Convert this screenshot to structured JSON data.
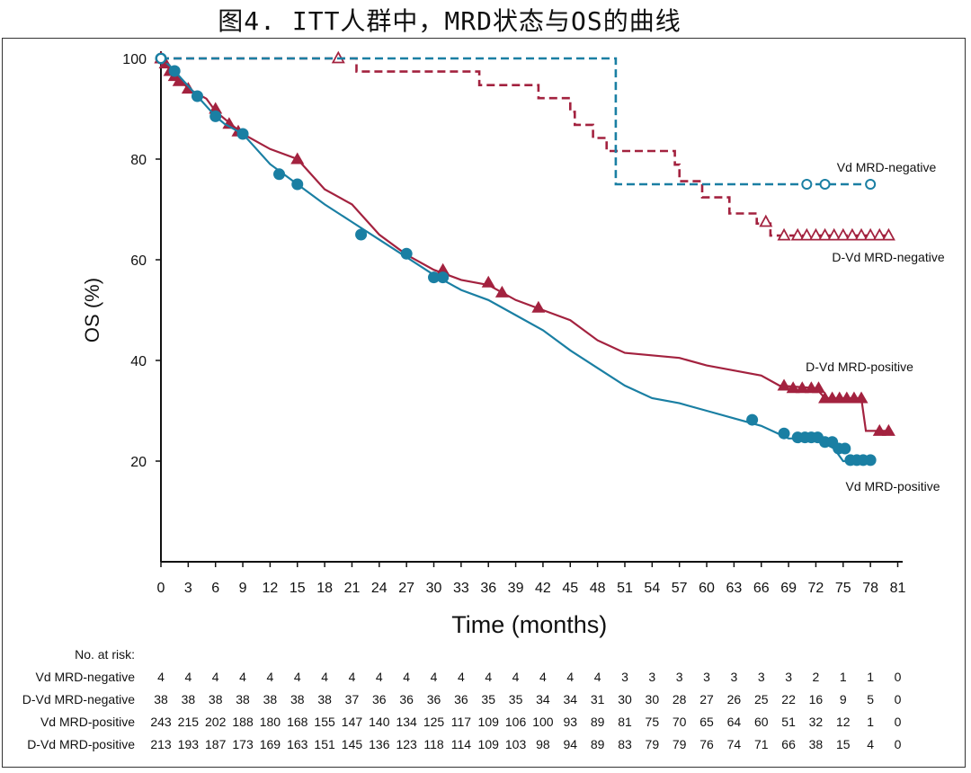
{
  "title": "图4. ITT人群中，MRD状态与OS的曲线",
  "chart_data": {
    "type": "line",
    "subtype": "kaplan-meier",
    "title": "图4. ITT人群中，MRD状态与OS的曲线",
    "xlabel": "Time (months)",
    "ylabel": "OS (%)",
    "xlim": [
      0,
      81
    ],
    "ylim": [
      0,
      100
    ],
    "xticks": [
      "0",
      "3",
      "6",
      "9",
      "12",
      "15",
      "18",
      "21",
      "24",
      "27",
      "30",
      "33",
      "36",
      "39",
      "42",
      "45",
      "48",
      "51",
      "54",
      "57",
      "60",
      "63",
      "66",
      "69",
      "72",
      "75",
      "78",
      "81"
    ],
    "yticks": [
      "20",
      "40",
      "60",
      "80",
      "100"
    ],
    "colors": {
      "teal": "#1a7fa3",
      "red": "#a3223f",
      "axis": "#111111"
    },
    "series": [
      {
        "name": "Vd MRD-negative",
        "label": "Vd MRD-negative",
        "color": "#1a7fa3",
        "dash": "dashed",
        "marker": "open-circle",
        "points": [
          [
            0,
            100
          ],
          [
            50,
            100
          ],
          [
            50,
            75
          ],
          [
            78,
            75
          ]
        ],
        "censored": [
          [
            0,
            100
          ],
          [
            71,
            75
          ],
          [
            73,
            75
          ],
          [
            78,
            75
          ]
        ]
      },
      {
        "name": "D-Vd MRD-negative",
        "label": "D-Vd MRD-negative",
        "color": "#a3223f",
        "dash": "dashed",
        "marker": "open-triangle",
        "points": [
          [
            0,
            100
          ],
          [
            21.5,
            100
          ],
          [
            21.5,
            97.4
          ],
          [
            35,
            97.4
          ],
          [
            35,
            94.7
          ],
          [
            41.5,
            94.7
          ],
          [
            41.5,
            92.1
          ],
          [
            45,
            92.1
          ],
          [
            45,
            89.4
          ],
          [
            45.5,
            89.4
          ],
          [
            45.5,
            86.8
          ],
          [
            47.5,
            86.8
          ],
          [
            47.5,
            84.2
          ],
          [
            49,
            84.2
          ],
          [
            49,
            81.6
          ],
          [
            56.5,
            81.6
          ],
          [
            56.5,
            78.9
          ],
          [
            57,
            78.9
          ],
          [
            57,
            75.6
          ],
          [
            59.5,
            75.6
          ],
          [
            59.5,
            72.4
          ],
          [
            62.5,
            72.4
          ],
          [
            62.5,
            69.2
          ],
          [
            65.5,
            69.2
          ],
          [
            65.5,
            67.2
          ],
          [
            67,
            67.2
          ],
          [
            67,
            64.8
          ],
          [
            80,
            64.8
          ]
        ],
        "censored": [
          [
            0,
            100
          ],
          [
            19.5,
            100
          ],
          [
            66.5,
            67.5
          ],
          [
            68.5,
            64.8
          ],
          [
            70,
            64.8
          ],
          [
            71,
            64.8
          ],
          [
            72,
            64.8
          ],
          [
            73,
            64.8
          ],
          [
            74,
            64.8
          ],
          [
            75,
            64.8
          ],
          [
            76,
            64.8
          ],
          [
            77,
            64.8
          ],
          [
            78,
            64.8
          ],
          [
            79,
            64.8
          ],
          [
            80,
            64.8
          ]
        ]
      },
      {
        "name": "Vd MRD-positive",
        "label": "Vd MRD-positive",
        "color": "#1a7fa3",
        "dash": "solid",
        "marker": "filled-circle",
        "points": [
          [
            0,
            100
          ],
          [
            1,
            98.5
          ],
          [
            2,
            96.5
          ],
          [
            3,
            94.5
          ],
          [
            4,
            92.5
          ],
          [
            5,
            90.5
          ],
          [
            6,
            88.5
          ],
          [
            7,
            87
          ],
          [
            8,
            86
          ],
          [
            9,
            85
          ],
          [
            10,
            83
          ],
          [
            12,
            79
          ],
          [
            15,
            75
          ],
          [
            18,
            71
          ],
          [
            21,
            67.5
          ],
          [
            24,
            64
          ],
          [
            27,
            60.5
          ],
          [
            30,
            57
          ],
          [
            33,
            54
          ],
          [
            36,
            52
          ],
          [
            39,
            49
          ],
          [
            42,
            46
          ],
          [
            45,
            42
          ],
          [
            48,
            38.5
          ],
          [
            51,
            35
          ],
          [
            54,
            32.5
          ],
          [
            57,
            31.5
          ],
          [
            60,
            30
          ],
          [
            63,
            28.5
          ],
          [
            66,
            27
          ],
          [
            69,
            24.5
          ],
          [
            72,
            24.5
          ],
          [
            73,
            23.5
          ],
          [
            74,
            22.5
          ],
          [
            75,
            20
          ],
          [
            78,
            20
          ]
        ],
        "censored": [
          [
            0,
            100
          ],
          [
            1.5,
            97.5
          ],
          [
            4,
            92.5
          ],
          [
            6,
            88.5
          ],
          [
            9,
            85
          ],
          [
            13,
            77
          ],
          [
            15,
            75
          ],
          [
            22,
            65
          ],
          [
            27,
            61.2
          ],
          [
            30,
            56.5
          ],
          [
            31,
            56.5
          ],
          [
            65,
            28.2
          ],
          [
            68.5,
            25.5
          ],
          [
            70,
            24.7
          ],
          [
            70.8,
            24.7
          ],
          [
            71.5,
            24.7
          ],
          [
            72.2,
            24.7
          ],
          [
            73,
            23.8
          ],
          [
            73.8,
            23.8
          ],
          [
            74.5,
            22.5
          ],
          [
            75.2,
            22.5
          ],
          [
            75.8,
            20.2
          ],
          [
            76.5,
            20.2
          ],
          [
            77.2,
            20.2
          ],
          [
            78,
            20.2
          ]
        ]
      },
      {
        "name": "D-Vd MRD-positive",
        "label": "D-Vd MRD-positive",
        "color": "#a3223f",
        "dash": "solid",
        "marker": "filled-triangle",
        "points": [
          [
            0,
            100
          ],
          [
            1,
            98
          ],
          [
            2,
            96
          ],
          [
            3,
            94
          ],
          [
            5,
            92
          ],
          [
            6,
            89.5
          ],
          [
            8,
            86.5
          ],
          [
            9,
            85
          ],
          [
            12,
            82
          ],
          [
            15,
            80
          ],
          [
            18,
            74
          ],
          [
            21,
            71
          ],
          [
            24,
            65
          ],
          [
            27,
            61
          ],
          [
            30,
            58
          ],
          [
            33,
            56
          ],
          [
            36,
            55
          ],
          [
            39,
            52
          ],
          [
            42,
            50
          ],
          [
            45,
            48
          ],
          [
            48,
            44
          ],
          [
            51,
            41.5
          ],
          [
            57,
            40.5
          ],
          [
            60,
            39
          ],
          [
            63,
            38
          ],
          [
            66,
            37
          ],
          [
            68,
            35
          ],
          [
            72,
            34.5
          ],
          [
            73,
            32.5
          ],
          [
            77,
            32.5
          ],
          [
            77.5,
            26
          ],
          [
            80,
            26
          ]
        ],
        "censored": [
          [
            0,
            100
          ],
          [
            0.5,
            99
          ],
          [
            1,
            97.5
          ],
          [
            1.5,
            96.5
          ],
          [
            2,
            95.5
          ],
          [
            3,
            94
          ],
          [
            6,
            90
          ],
          [
            7.5,
            87
          ],
          [
            8.5,
            85.5
          ],
          [
            15,
            80
          ],
          [
            31,
            58
          ],
          [
            36,
            55.5
          ],
          [
            37.5,
            53.5
          ],
          [
            41.5,
            50.5
          ],
          [
            68.5,
            35
          ],
          [
            69.5,
            34.5
          ],
          [
            70.5,
            34.5
          ],
          [
            71.5,
            34.5
          ],
          [
            72.3,
            34.5
          ],
          [
            73,
            32.5
          ],
          [
            73.8,
            32.5
          ],
          [
            74.6,
            32.5
          ],
          [
            75.4,
            32.5
          ],
          [
            76.2,
            32.5
          ],
          [
            77,
            32.5
          ],
          [
            79,
            26
          ],
          [
            80,
            26
          ]
        ]
      }
    ],
    "risk_table": {
      "header": "No. at risk:",
      "rows": [
        {
          "label": "Vd MRD-negative",
          "values": [
            "4",
            "4",
            "4",
            "4",
            "4",
            "4",
            "4",
            "4",
            "4",
            "4",
            "4",
            "4",
            "4",
            "4",
            "4",
            "4",
            "4",
            "3",
            "3",
            "3",
            "3",
            "3",
            "3",
            "3",
            "2",
            "1",
            "1",
            "0"
          ]
        },
        {
          "label": "D-Vd MRD-negative",
          "values": [
            "38",
            "38",
            "38",
            "38",
            "38",
            "38",
            "38",
            "37",
            "36",
            "36",
            "36",
            "36",
            "35",
            "35",
            "34",
            "34",
            "31",
            "30",
            "30",
            "28",
            "27",
            "26",
            "25",
            "22",
            "16",
            "9",
            "5",
            "0"
          ]
        },
        {
          "label": "Vd MRD-positive",
          "values": [
            "243",
            "215",
            "202",
            "188",
            "180",
            "168",
            "155",
            "147",
            "140",
            "134",
            "125",
            "117",
            "109",
            "106",
            "100",
            "93",
            "89",
            "81",
            "75",
            "70",
            "65",
            "64",
            "60",
            "51",
            "32",
            "12",
            "1",
            "0"
          ]
        },
        {
          "label": "D-Vd MRD-positive",
          "values": [
            "213",
            "193",
            "187",
            "173",
            "169",
            "163",
            "151",
            "145",
            "136",
            "123",
            "118",
            "114",
            "109",
            "103",
            "98",
            "94",
            "89",
            "83",
            "79",
            "79",
            "76",
            "74",
            "71",
            "66",
            "38",
            "15",
            "4",
            "0"
          ]
        }
      ]
    }
  }
}
